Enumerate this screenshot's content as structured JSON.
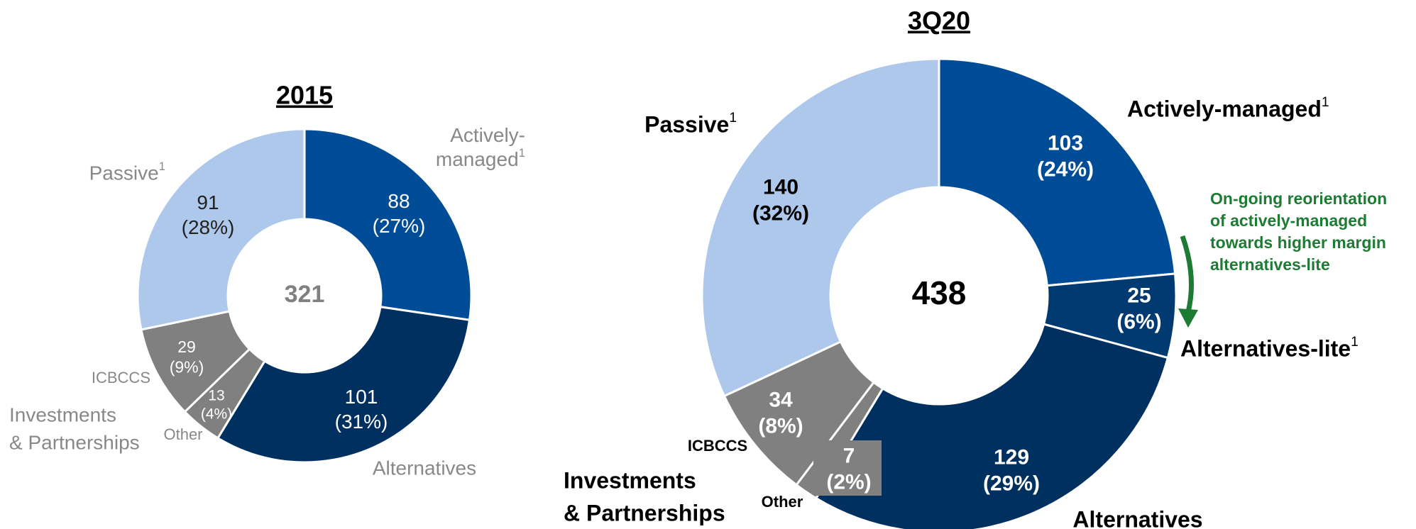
{
  "chart_data": [
    {
      "type": "donut",
      "title": "2015",
      "total": 321,
      "categories": [
        "Actively-managed",
        "Alternatives",
        "Other",
        "ICBCCS",
        "Passive"
      ],
      "label_footnotes": [
        "1",
        null,
        null,
        null,
        "1"
      ],
      "values": [
        88,
        101,
        13,
        29,
        91
      ],
      "share_labels": [
        "(27%)",
        "(31%)",
        "(4%)",
        "(9%)",
        "(28%)"
      ],
      "colors": [
        "#004c97",
        "#00305f",
        "#808080",
        "#808080",
        "#adc8ea"
      ],
      "group_label": [
        "Investments",
        "& Partnerships"
      ]
    },
    {
      "type": "donut",
      "title": "3Q20",
      "total": 438,
      "categories": [
        "Actively-managed",
        "Alternatives-lite",
        "Alternatives",
        "Other",
        "ICBCCS",
        "Passive"
      ],
      "label_footnotes": [
        "1",
        "1",
        null,
        null,
        null,
        "1"
      ],
      "values": [
        103,
        25,
        129,
        7,
        34,
        140
      ],
      "share_labels": [
        "(24%)",
        "(6%)",
        "(29%)",
        "(2%)",
        "(8%)",
        "(32%)"
      ],
      "colors": [
        "#004c97",
        "#003a70",
        "#00305f",
        "#808080",
        "#808080",
        "#adc8ea"
      ],
      "group_label": [
        "Investments",
        "& Partnerships"
      ],
      "annotation": [
        "On-going reorientation",
        "of actively-managed",
        "towards higher margin",
        "alternatives-lite"
      ]
    }
  ]
}
